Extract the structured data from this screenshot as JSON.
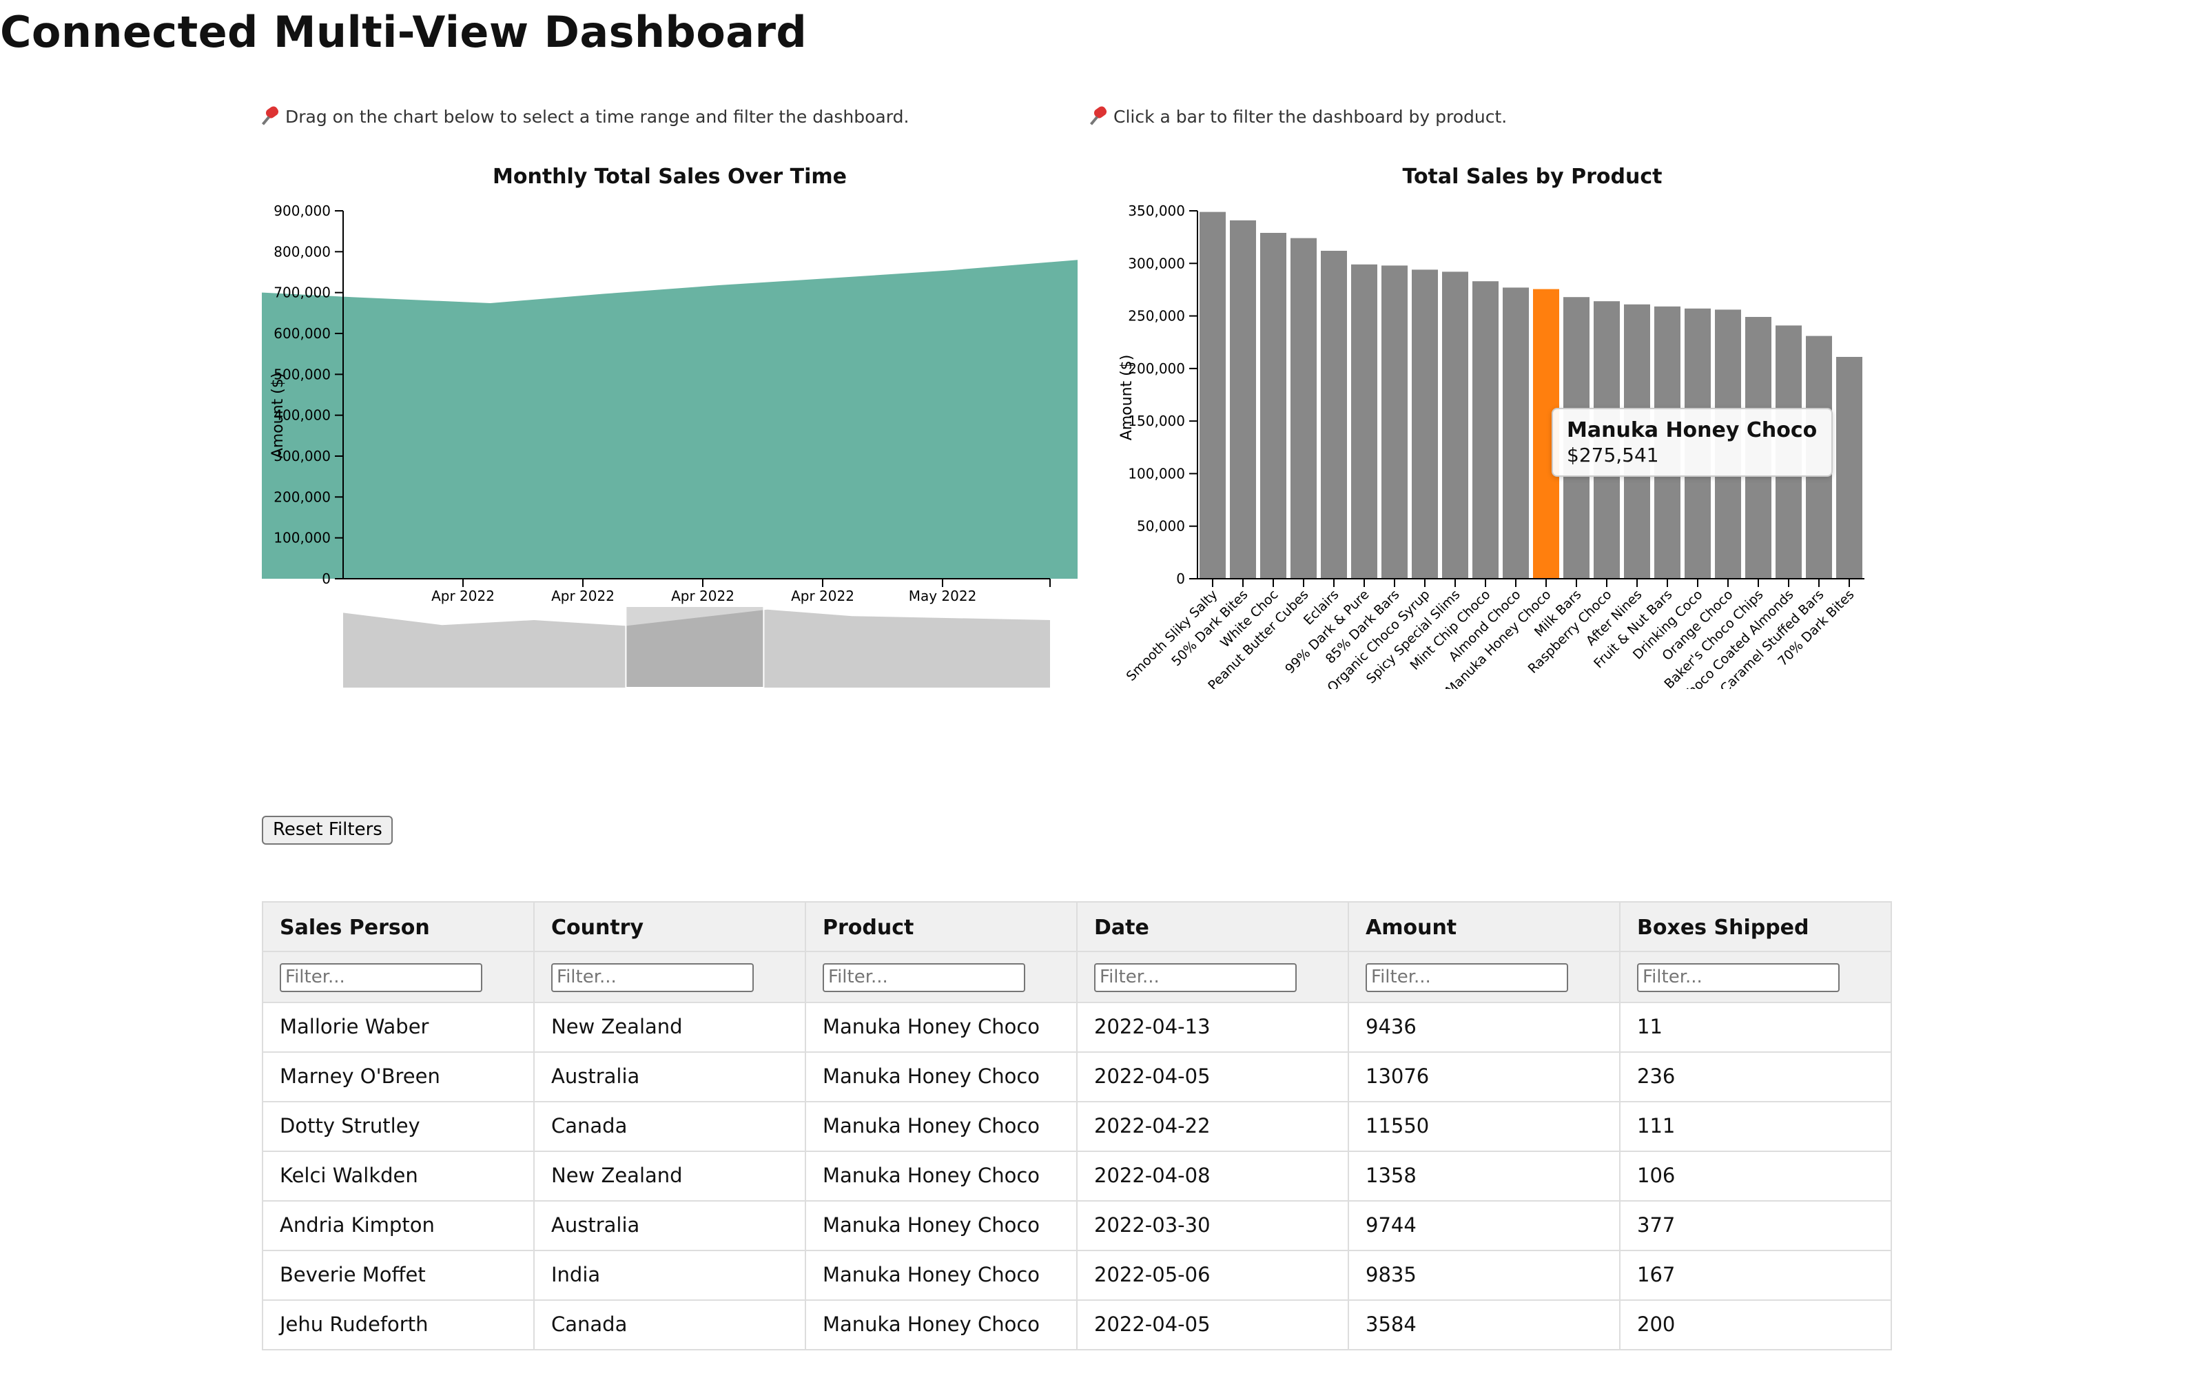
{
  "page": {
    "title": "Connected Multi-View Dashboard"
  },
  "hints": {
    "time": "Drag on the chart below to select a time range and filter the dashboard.",
    "product": "Click a bar to filter the dashboard by product."
  },
  "buttons": {
    "reset": "Reset Filters"
  },
  "tooltip": {
    "name": "Manuka Honey Choco",
    "value": "$275,541"
  },
  "colors": {
    "area": "#69b3a2",
    "bar": "#888888",
    "bar_selected": "#ff7f0e",
    "brush_area": "#cccccc",
    "brush_selection": "#777777"
  },
  "chart_data": [
    {
      "type": "area",
      "title": "Monthly Total Sales Over Time",
      "ylabel": "Amount ($)",
      "xlabel": "",
      "ylim": [
        0,
        900000
      ],
      "yticks": [
        "0",
        "100,000",
        "200,000",
        "300,000",
        "400,000",
        "500,000",
        "600,000",
        "700,000",
        "800,000",
        "900,000"
      ],
      "xticks": [
        "Apr 2022",
        "Apr 2022",
        "Apr 2022",
        "Apr 2022",
        "May 2022"
      ],
      "x": [
        0,
        0.12,
        0.28,
        0.42,
        0.56,
        0.71,
        0.84,
        1.0
      ],
      "values": [
        700000,
        688000,
        674000,
        697000,
        718000,
        737000,
        754000,
        780000
      ],
      "grid": false
    },
    {
      "type": "area",
      "title": "",
      "x": [
        0,
        0.14,
        0.27,
        0.4,
        0.6,
        0.72,
        1.0
      ],
      "values": [
        0.92,
        0.77,
        0.83,
        0.76,
        0.96,
        0.88,
        0.83
      ],
      "brush_selection": [
        0.4,
        0.595
      ]
    },
    {
      "type": "bar",
      "title": "Total Sales by Product",
      "ylabel": "Amount ($)",
      "xlabel": "",
      "ylim": [
        0,
        350000
      ],
      "yticks": [
        "0",
        "50,000",
        "100,000",
        "150,000",
        "200,000",
        "250,000",
        "300,000",
        "350,000"
      ],
      "categories": [
        "Smooth Sliky Salty",
        "50% Dark Bites",
        "White Choc",
        "Peanut Butter Cubes",
        "Eclairs",
        "99% Dark & Pure",
        "85% Dark Bars",
        "Organic Choco Syrup",
        "Spicy Special Slims",
        "Mint Chip Choco",
        "Almond Choco",
        "Manuka Honey Choco",
        "Milk Bars",
        "Raspberry Choco",
        "After Nines",
        "Fruit & Nut Bars",
        "Drinking Coco",
        "Orange Choco",
        "Baker's Choco Chips",
        "Choco Coated Almonds",
        "Caramel Stuffed Bars",
        "70% Dark Bites"
      ],
      "values": [
        349000,
        341000,
        329000,
        324000,
        312000,
        299000,
        298000,
        294000,
        292000,
        283000,
        277000,
        275541,
        268000,
        264000,
        261000,
        259000,
        257000,
        256000,
        249000,
        241000,
        231000,
        211000
      ],
      "selected": "Manuka Honey Choco",
      "grid": false
    }
  ],
  "table": {
    "headers": [
      "Sales Person",
      "Country",
      "Product",
      "Date",
      "Amount",
      "Boxes Shipped"
    ],
    "filter_placeholder": "Filter...",
    "rows": [
      [
        "Mallorie Waber",
        "New Zealand",
        "Manuka Honey Choco",
        "2022-04-13",
        "9436",
        "11"
      ],
      [
        "Marney O'Breen",
        "Australia",
        "Manuka Honey Choco",
        "2022-04-05",
        "13076",
        "236"
      ],
      [
        "Dotty Strutley",
        "Canada",
        "Manuka Honey Choco",
        "2022-04-22",
        "11550",
        "111"
      ],
      [
        "Kelci Walkden",
        "New Zealand",
        "Manuka Honey Choco",
        "2022-04-08",
        "1358",
        "106"
      ],
      [
        "Andria Kimpton",
        "Australia",
        "Manuka Honey Choco",
        "2022-03-30",
        "9744",
        "377"
      ],
      [
        "Beverie Moffet",
        "India",
        "Manuka Honey Choco",
        "2022-05-06",
        "9835",
        "167"
      ],
      [
        "Jehu Rudeforth",
        "Canada",
        "Manuka Honey Choco",
        "2022-04-05",
        "3584",
        "200"
      ]
    ]
  }
}
